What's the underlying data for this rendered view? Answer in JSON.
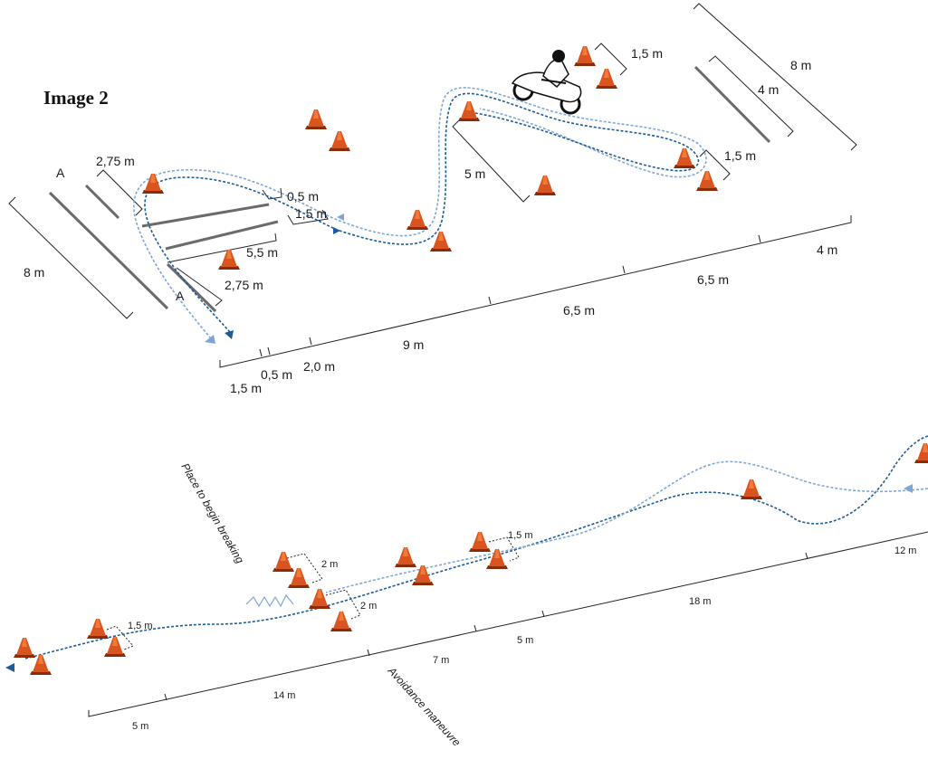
{
  "title": "Image 2",
  "colors": {
    "cone": "#d9541e",
    "cone_dark": "#8a2c06",
    "path_dark": "#1b5b97",
    "path_light": "#7fa6d5",
    "line": "#666666"
  },
  "top": {
    "lane_marker_a1": "A",
    "lane_marker_a2": "A",
    "dims": {
      "d_2_75_top": "2,75 m",
      "d_0_5_right": "0,5 m",
      "d_1_5_mid": "1,5 m",
      "d_5_5": "5,5 m",
      "d_2_75_bottom": "2,75 m",
      "d_8_left": "8 m",
      "d_5": "5 m",
      "d_1_5_topright": "1,5 m",
      "d_8_right": "8 m",
      "d_4_right": "4 m",
      "d_1_5_right": "1,5 m",
      "base_4": "4 m",
      "base_6_5_a": "6,5 m",
      "base_6_5_b": "6,5 m",
      "base_9": "9 m",
      "base_2_0": "2,0 m",
      "base_0_5": "0,5 m",
      "base_1_5": "1,5 m"
    }
  },
  "bottom": {
    "place_to_begin": "Place to begin breaking",
    "avoidance": "Avoidance maneuvre",
    "dims": {
      "d_2_upper": "2 m",
      "d_2_lower": "2 m",
      "d_1_5_left": "1,5 m",
      "d_1_5_right": "1,5 m",
      "base_12": "12 m",
      "base_18": "18 m",
      "base_5_mid": "5 m",
      "base_7": "7 m",
      "base_14": "14 m",
      "base_5_left": "5 m"
    }
  }
}
